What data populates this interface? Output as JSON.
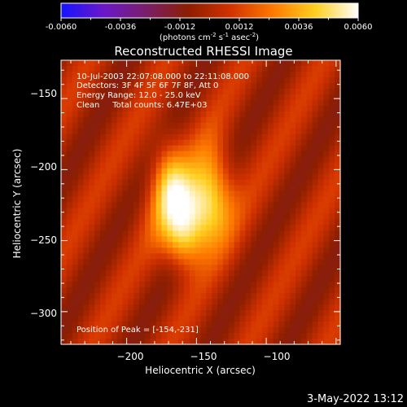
{
  "colorbar": {
    "ticks": [
      "-0.0060",
      "-0.0036",
      "-0.0012",
      "0.0012",
      "0.0036",
      "0.0060"
    ],
    "units_prefix": "(photons cm",
    "units_exp1": "-2",
    "units_mid": " s",
    "units_exp2": "-1",
    "units_mid2": " asec",
    "units_exp3": "-2",
    "units_suffix": ")",
    "stops": [
      "#1414ff",
      "#6a18c8",
      "#7a1e6a",
      "#8c1e00",
      "#d23200",
      "#ff7a00",
      "#ffd020",
      "#ffffff"
    ]
  },
  "chart_data": {
    "type": "heatmap",
    "title": "Reconstructed RHESSI Image",
    "xlabel": "Heliocentric X (arcsec)",
    "ylabel": "Heliocentric Y (arcsec)",
    "xlim": [
      -247,
      -47
    ],
    "ylim": [
      -323,
      -123
    ],
    "xticks": [
      -200,
      -150,
      -100
    ],
    "yticks": [
      -300,
      -250,
      -200,
      -150
    ],
    "xtick_labels": [
      "−200",
      "−150",
      "−100"
    ],
    "ytick_labels": [
      "−300",
      "−250",
      "−200",
      "−150"
    ],
    "vlim": [
      -0.006,
      0.006
    ],
    "annotations": [
      "10-Jul-2003 22:07:08.000 to 22:11:08.000",
      "Detectors: 3F 4F 5F 6F 7F 8F, Att 0",
      "Energy Range: 12.0 - 25.0 keV",
      "Clean     Total counts: 6.47E+03"
    ],
    "peak_label": "Position of Peak = [-154,-231]",
    "peak": [
      -154,
      -231
    ]
  },
  "footer": {
    "date": "3-May-2022 13:12"
  }
}
